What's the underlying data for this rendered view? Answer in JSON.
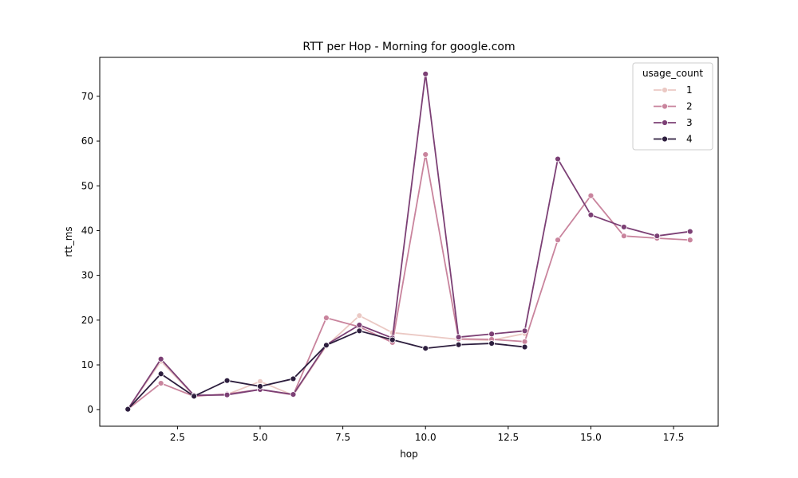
{
  "chart_data": {
    "type": "line",
    "title": "RTT per Hop - Morning for google.com",
    "xlabel": "hop",
    "ylabel": "rtt_ms",
    "xlim": [
      0.15,
      18.85
    ],
    "ylim": [
      -3.7,
      78.7
    ],
    "xticks": [
      2.5,
      5.0,
      7.5,
      10.0,
      12.5,
      15.0,
      17.5
    ],
    "xtick_labels": [
      "2.5",
      "5.0",
      "7.5",
      "10.0",
      "12.5",
      "15.0",
      "17.5"
    ],
    "yticks": [
      0,
      10,
      20,
      30,
      40,
      50,
      60,
      70
    ],
    "ytick_labels": [
      "0",
      "10",
      "20",
      "30",
      "40",
      "50",
      "60",
      "70"
    ],
    "grid": false,
    "legend": {
      "title": "usage_count",
      "placement": "top-right"
    },
    "series": [
      {
        "name": "1",
        "color": "#ebc9c4",
        "x": [
          1,
          2,
          3,
          4,
          5,
          6,
          7,
          8,
          9,
          11,
          12,
          13
        ],
        "y": [
          0.1,
          10.8,
          3.1,
          3.4,
          6.3,
          3.2,
          14.2,
          21.0,
          17.2,
          15.7,
          15.5,
          17.0
        ]
      },
      {
        "name": "2",
        "color": "#c9849d",
        "x": [
          1,
          2,
          3,
          4,
          5,
          6,
          7,
          8,
          9,
          10,
          11,
          12,
          13,
          14,
          15,
          16,
          17,
          18
        ],
        "y": [
          0.1,
          5.9,
          3.0,
          3.5,
          4.5,
          3.3,
          20.5,
          18.5,
          15.0,
          57.0,
          15.8,
          15.7,
          15.2,
          37.9,
          47.8,
          38.8,
          38.3,
          37.9
        ]
      },
      {
        "name": "3",
        "color": "#7c4075",
        "x": [
          1,
          2,
          3,
          4,
          5,
          6,
          7,
          8,
          9,
          10,
          11,
          12,
          13,
          14,
          15,
          16,
          17,
          18
        ],
        "y": [
          0.1,
          11.3,
          3.2,
          3.3,
          4.5,
          3.4,
          14.5,
          18.9,
          16.0,
          75.0,
          16.2,
          16.9,
          17.6,
          56.0,
          43.5,
          40.8,
          38.8,
          39.8
        ]
      },
      {
        "name": "4",
        "color": "#2d1e3e",
        "x": [
          1,
          2,
          3,
          4,
          5,
          6,
          7,
          8,
          9,
          10,
          11,
          12,
          13
        ],
        "y": [
          0.1,
          8.0,
          3.0,
          6.5,
          5.2,
          6.9,
          14.4,
          17.6,
          15.6,
          13.7,
          14.5,
          14.8,
          14.0
        ]
      }
    ]
  }
}
